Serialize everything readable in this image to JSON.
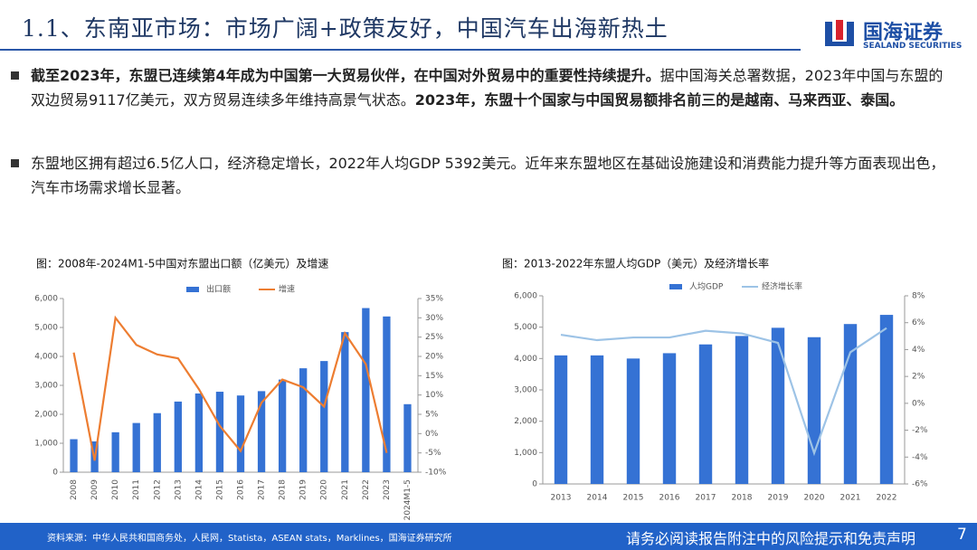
{
  "header": {
    "title": "1.1、东南亚市场：市场广阔+政策友好，中国汽车出海新热土",
    "logo_cn": "国海证券",
    "logo_en": "SEALAND SECURITIES"
  },
  "bullets": [
    {
      "segments": [
        {
          "text": "截至2023年，东盟已连续第4年成为中国第一大贸易伙伴，在中国对外贸易中的重要性持续提升。",
          "bold": true
        },
        {
          "text": "据中国海关总署数据，2023年中国与东盟的双边贸易9117亿美元，双方贸易连续多年维持高景气状态。",
          "bold": false
        },
        {
          "text": "2023年，东盟十个国家与中国贸易额排名前三的是越南、马来西亚、泰国。",
          "bold": true
        }
      ]
    },
    {
      "segments": [
        {
          "text": "东盟地区拥有超过6.5亿人口，经济稳定增长，2022年人均GDP 5392美元。近年来东盟地区在基础设施建设和消费能力提升等方面表现出色，汽车市场需求增长显著。",
          "bold": false
        }
      ]
    }
  ],
  "chart_data": [
    {
      "type": "bar-line",
      "title": "图：2008年-2024M1-5中国对东盟出口额（亿美元）及增速",
      "categories": [
        "2008",
        "2009",
        "2010",
        "2011",
        "2012",
        "2013",
        "2014",
        "2015",
        "2016",
        "2017",
        "2018",
        "2019",
        "2020",
        "2021",
        "2022",
        "2023",
        "2024M1-5"
      ],
      "series": [
        {
          "name": "出口额",
          "type": "bar",
          "color": "#3572d4",
          "values": [
            1140,
            1065,
            1380,
            1700,
            2040,
            2440,
            2720,
            2780,
            2650,
            2800,
            3200,
            3590,
            3840,
            4840,
            5670,
            5380,
            2350
          ]
        },
        {
          "name": "增速",
          "type": "line",
          "axis": "y2",
          "color": "#ed7d31",
          "values": [
            21,
            -7,
            30,
            23,
            20.5,
            19.5,
            11.5,
            2,
            -4.5,
            8,
            14,
            12,
            7,
            26,
            18,
            -5,
            null
          ]
        }
      ],
      "ylim": [
        0,
        6000
      ],
      "yticks": [
        0,
        {
          "value": 1000,
          "label": "1,000"
        },
        {
          "value": 2000,
          "label": "2,000"
        },
        {
          "value": 3000,
          "label": "3,000"
        },
        {
          "value": 4000,
          "label": "4,000"
        },
        {
          "value": 5000,
          "label": "5,000"
        },
        {
          "value": 6000,
          "label": "6,000"
        }
      ],
      "y2lim": [
        -10,
        35
      ],
      "y2ticks": [
        {
          "value": -10,
          "label": "-10%"
        },
        {
          "value": -5,
          "label": "-5%"
        },
        {
          "value": 0,
          "label": "0%"
        },
        {
          "value": 5,
          "label": "5%"
        },
        {
          "value": 10,
          "label": "10%"
        },
        {
          "value": 15,
          "label": "15%"
        },
        {
          "value": 20,
          "label": "20%"
        },
        {
          "value": 25,
          "label": "25%"
        },
        {
          "value": 30,
          "label": "30%"
        },
        {
          "value": 35,
          "label": "35%"
        }
      ],
      "legend": "top",
      "grid": false
    },
    {
      "type": "bar-line",
      "title": "图：2013-2022年东盟人均GDP（美元）及经济增长率",
      "categories": [
        "2013",
        "2014",
        "2015",
        "2016",
        "2017",
        "2018",
        "2019",
        "2020",
        "2021",
        "2022"
      ],
      "series": [
        {
          "name": "人均GDP",
          "type": "bar",
          "color": "#3572d4",
          "values": [
            4100,
            4100,
            4000,
            4170,
            4450,
            4720,
            4980,
            4680,
            5100,
            5392
          ]
        },
        {
          "name": "经济增长率",
          "type": "line",
          "axis": "y2",
          "color": "#9dc3e6",
          "values": [
            5.1,
            4.7,
            4.9,
            4.9,
            5.4,
            5.2,
            4.5,
            -3.7,
            3.8,
            5.6
          ]
        }
      ],
      "ylim": [
        0,
        6000
      ],
      "yticks": [
        0,
        {
          "value": 1000,
          "label": "1,000"
        },
        {
          "value": 2000,
          "label": "2,000"
        },
        {
          "value": 3000,
          "label": "3,000"
        },
        {
          "value": 4000,
          "label": "4,000"
        },
        {
          "value": 5000,
          "label": "5,000"
        },
        {
          "value": 6000,
          "label": "6,000"
        }
      ],
      "y2lim": [
        -6,
        8
      ],
      "y2ticks": [
        {
          "value": -6,
          "label": "-6%"
        },
        {
          "value": -4,
          "label": "-4%"
        },
        {
          "value": -2,
          "label": "-2%"
        },
        {
          "value": 0,
          "label": "0%"
        },
        {
          "value": 2,
          "label": "2%"
        },
        {
          "value": 4,
          "label": "4%"
        },
        {
          "value": 6,
          "label": "6%"
        },
        {
          "value": 8,
          "label": "8%"
        }
      ],
      "legend": "top",
      "grid": false
    }
  ],
  "footer": {
    "source": "资料来源：中华人民共和国商务处，人民网，Statista，ASEAN stats，Marklines，国海证券研究所",
    "disclaimer": "请务必阅读报告附注中的风险提示和免责声明",
    "page": "7"
  }
}
